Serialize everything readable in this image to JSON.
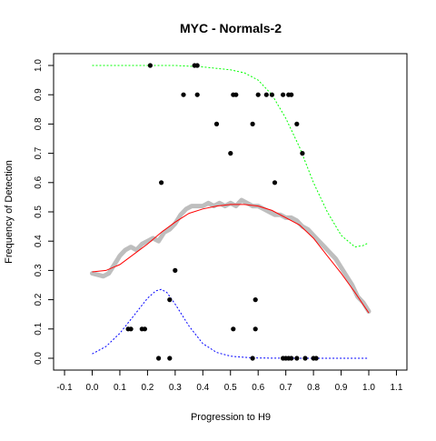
{
  "chart_data": {
    "type": "scatter",
    "title": "MYC - Normals-2",
    "xlabel": "Progression to H9",
    "ylabel": "Frequency of Detection",
    "xlim": [
      -0.1,
      1.1
    ],
    "ylim": [
      0.0,
      1.0
    ],
    "xticks": [
      "-0.1",
      "0.0",
      "0.1",
      "0.2",
      "0.3",
      "0.4",
      "0.5",
      "0.6",
      "0.7",
      "0.8",
      "0.9",
      "1.0",
      "1.1"
    ],
    "yticks": [
      "0.0",
      "0.1",
      "0.2",
      "0.3",
      "0.4",
      "0.5",
      "0.6",
      "0.7",
      "0.8",
      "0.9",
      "1.0"
    ],
    "points": [
      {
        "x": 0.21,
        "y": 1.0
      },
      {
        "x": 0.37,
        "y": 1.0
      },
      {
        "x": 0.38,
        "y": 1.0
      },
      {
        "x": 0.33,
        "y": 0.9
      },
      {
        "x": 0.38,
        "y": 0.9
      },
      {
        "x": 0.51,
        "y": 0.9
      },
      {
        "x": 0.52,
        "y": 0.9
      },
      {
        "x": 0.6,
        "y": 0.9
      },
      {
        "x": 0.63,
        "y": 0.9
      },
      {
        "x": 0.65,
        "y": 0.9
      },
      {
        "x": 0.69,
        "y": 0.9
      },
      {
        "x": 0.71,
        "y": 0.9
      },
      {
        "x": 0.72,
        "y": 0.9
      },
      {
        "x": 0.45,
        "y": 0.8
      },
      {
        "x": 0.58,
        "y": 0.8
      },
      {
        "x": 0.74,
        "y": 0.8
      },
      {
        "x": 0.5,
        "y": 0.7
      },
      {
        "x": 0.76,
        "y": 0.7
      },
      {
        "x": 0.25,
        "y": 0.6
      },
      {
        "x": 0.66,
        "y": 0.6
      },
      {
        "x": 0.3,
        "y": 0.3
      },
      {
        "x": 0.28,
        "y": 0.2
      },
      {
        "x": 0.59,
        "y": 0.2
      },
      {
        "x": 0.13,
        "y": 0.1
      },
      {
        "x": 0.14,
        "y": 0.1
      },
      {
        "x": 0.18,
        "y": 0.1
      },
      {
        "x": 0.19,
        "y": 0.1
      },
      {
        "x": 0.51,
        "y": 0.1
      },
      {
        "x": 0.59,
        "y": 0.1
      },
      {
        "x": 0.24,
        "y": 0.0
      },
      {
        "x": 0.28,
        "y": 0.0
      },
      {
        "x": 0.58,
        "y": 0.0
      },
      {
        "x": 0.69,
        "y": 0.0
      },
      {
        "x": 0.7,
        "y": 0.0
      },
      {
        "x": 0.71,
        "y": 0.0
      },
      {
        "x": 0.72,
        "y": 0.0
      },
      {
        "x": 0.74,
        "y": 0.0
      },
      {
        "x": 0.77,
        "y": 0.0
      },
      {
        "x": 0.8,
        "y": 0.0
      },
      {
        "x": 0.81,
        "y": 0.0
      }
    ],
    "gray_trace": {
      "color": "#bebebe",
      "x": [
        0.0,
        0.02,
        0.04,
        0.06,
        0.08,
        0.1,
        0.12,
        0.14,
        0.16,
        0.18,
        0.2,
        0.22,
        0.24,
        0.26,
        0.28,
        0.3,
        0.32,
        0.34,
        0.36,
        0.38,
        0.4,
        0.42,
        0.44,
        0.46,
        0.48,
        0.5,
        0.52,
        0.54,
        0.56,
        0.58,
        0.6,
        0.62,
        0.64,
        0.66,
        0.68,
        0.7,
        0.72,
        0.74,
        0.76,
        0.78,
        0.8,
        0.82,
        0.84,
        0.86,
        0.88,
        0.9,
        0.92,
        0.94,
        0.96,
        0.98,
        1.0
      ],
      "y": [
        0.29,
        0.285,
        0.28,
        0.29,
        0.32,
        0.35,
        0.37,
        0.38,
        0.37,
        0.39,
        0.4,
        0.41,
        0.4,
        0.43,
        0.44,
        0.46,
        0.49,
        0.51,
        0.52,
        0.52,
        0.52,
        0.53,
        0.52,
        0.53,
        0.52,
        0.53,
        0.52,
        0.54,
        0.53,
        0.52,
        0.52,
        0.51,
        0.5,
        0.49,
        0.49,
        0.48,
        0.48,
        0.47,
        0.45,
        0.44,
        0.42,
        0.4,
        0.38,
        0.36,
        0.34,
        0.31,
        0.28,
        0.25,
        0.21,
        0.19,
        0.16
      ]
    },
    "curves": [
      {
        "color": "#ff0000",
        "dash": "none",
        "x": [
          0.0,
          0.05,
          0.1,
          0.15,
          0.2,
          0.25,
          0.3,
          0.35,
          0.4,
          0.45,
          0.5,
          0.55,
          0.6,
          0.65,
          0.7,
          0.75,
          0.8,
          0.85,
          0.9,
          0.95,
          1.0
        ],
        "y": [
          0.295,
          0.3,
          0.32,
          0.355,
          0.39,
          0.43,
          0.465,
          0.495,
          0.51,
          0.52,
          0.525,
          0.525,
          0.52,
          0.505,
          0.48,
          0.455,
          0.41,
          0.35,
          0.29,
          0.225,
          0.155
        ]
      },
      {
        "color": "#00ff00",
        "dash": "2,2",
        "x": [
          0.0,
          0.1,
          0.2,
          0.3,
          0.4,
          0.5,
          0.55,
          0.6,
          0.65,
          0.7,
          0.75,
          0.8,
          0.85,
          0.9,
          0.95,
          0.98,
          1.0
        ],
        "y": [
          1.0,
          1.0,
          1.0,
          1.0,
          0.995,
          0.985,
          0.975,
          0.95,
          0.9,
          0.82,
          0.72,
          0.6,
          0.5,
          0.42,
          0.38,
          0.385,
          0.395
        ]
      },
      {
        "color": "#0000ff",
        "dash": "2,2",
        "x": [
          0.0,
          0.05,
          0.1,
          0.15,
          0.2,
          0.23,
          0.25,
          0.27,
          0.3,
          0.35,
          0.4,
          0.45,
          0.5,
          0.55,
          0.6,
          0.7,
          0.8,
          0.9,
          1.0
        ],
        "y": [
          0.015,
          0.04,
          0.085,
          0.145,
          0.205,
          0.23,
          0.235,
          0.225,
          0.185,
          0.11,
          0.05,
          0.02,
          0.007,
          0.003,
          0.001,
          0.0,
          0.0,
          0.0,
          0.0
        ]
      }
    ]
  }
}
